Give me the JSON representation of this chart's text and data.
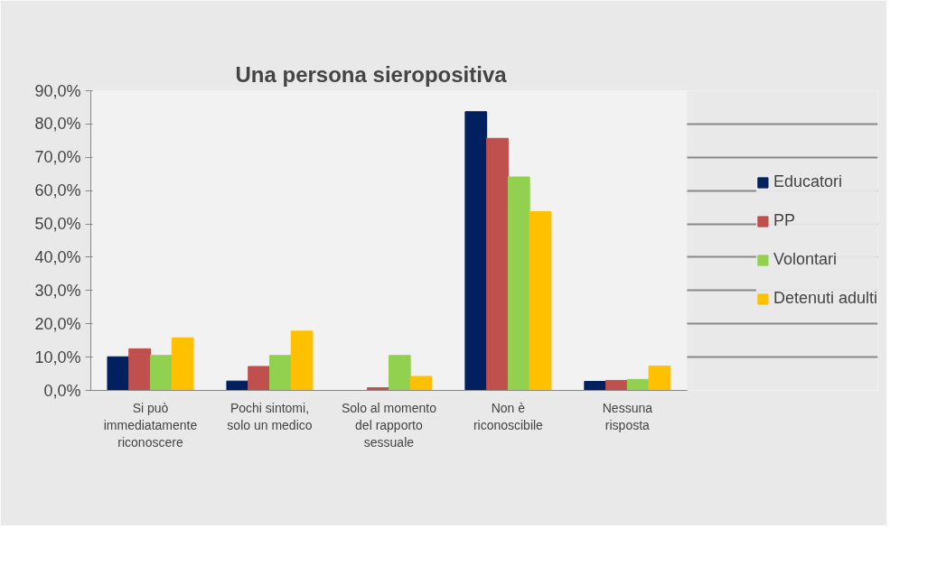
{
  "chart_data": {
    "type": "bar",
    "title": "Una persona sieropositiva",
    "categories": [
      "Si può immediatamente riconoscere",
      "Pochi sintomi, solo un medico",
      "Solo al momento del rapporto sessuale",
      "Non è riconoscibile",
      "Nessuna risposta"
    ],
    "series": [
      {
        "name": "Educatori",
        "color": "#002060",
        "values": [
          10.1,
          2.8,
          0,
          83.7,
          2.7
        ]
      },
      {
        "name": "PP",
        "color": "#c0504d",
        "values": [
          12.5,
          7.2,
          0.8,
          75.7,
          3.0
        ]
      },
      {
        "name": "Volontari",
        "color": "#92d050",
        "values": [
          10.5,
          10.5,
          10.5,
          64.1,
          3.3
        ]
      },
      {
        "name": "Detenuti adulti",
        "color": "#ffc000",
        "values": [
          15.8,
          17.8,
          4.2,
          53.7,
          7.3
        ]
      }
    ],
    "ylim": [
      0,
      90
    ],
    "yticks": [
      {
        "value": 0,
        "label": "0,0%"
      },
      {
        "value": 10,
        "label": "10,0%"
      },
      {
        "value": 20,
        "label": "20,0%"
      },
      {
        "value": 30,
        "label": "30,0%"
      },
      {
        "value": 40,
        "label": "40,0%"
      },
      {
        "value": 50,
        "label": "50,0%"
      },
      {
        "value": 60,
        "label": "60,0%"
      },
      {
        "value": 70,
        "label": "70,0%"
      },
      {
        "value": 80,
        "label": "80,0%"
      },
      {
        "value": 90,
        "label": "90,0%"
      }
    ],
    "grid": "y",
    "legend": "right"
  }
}
